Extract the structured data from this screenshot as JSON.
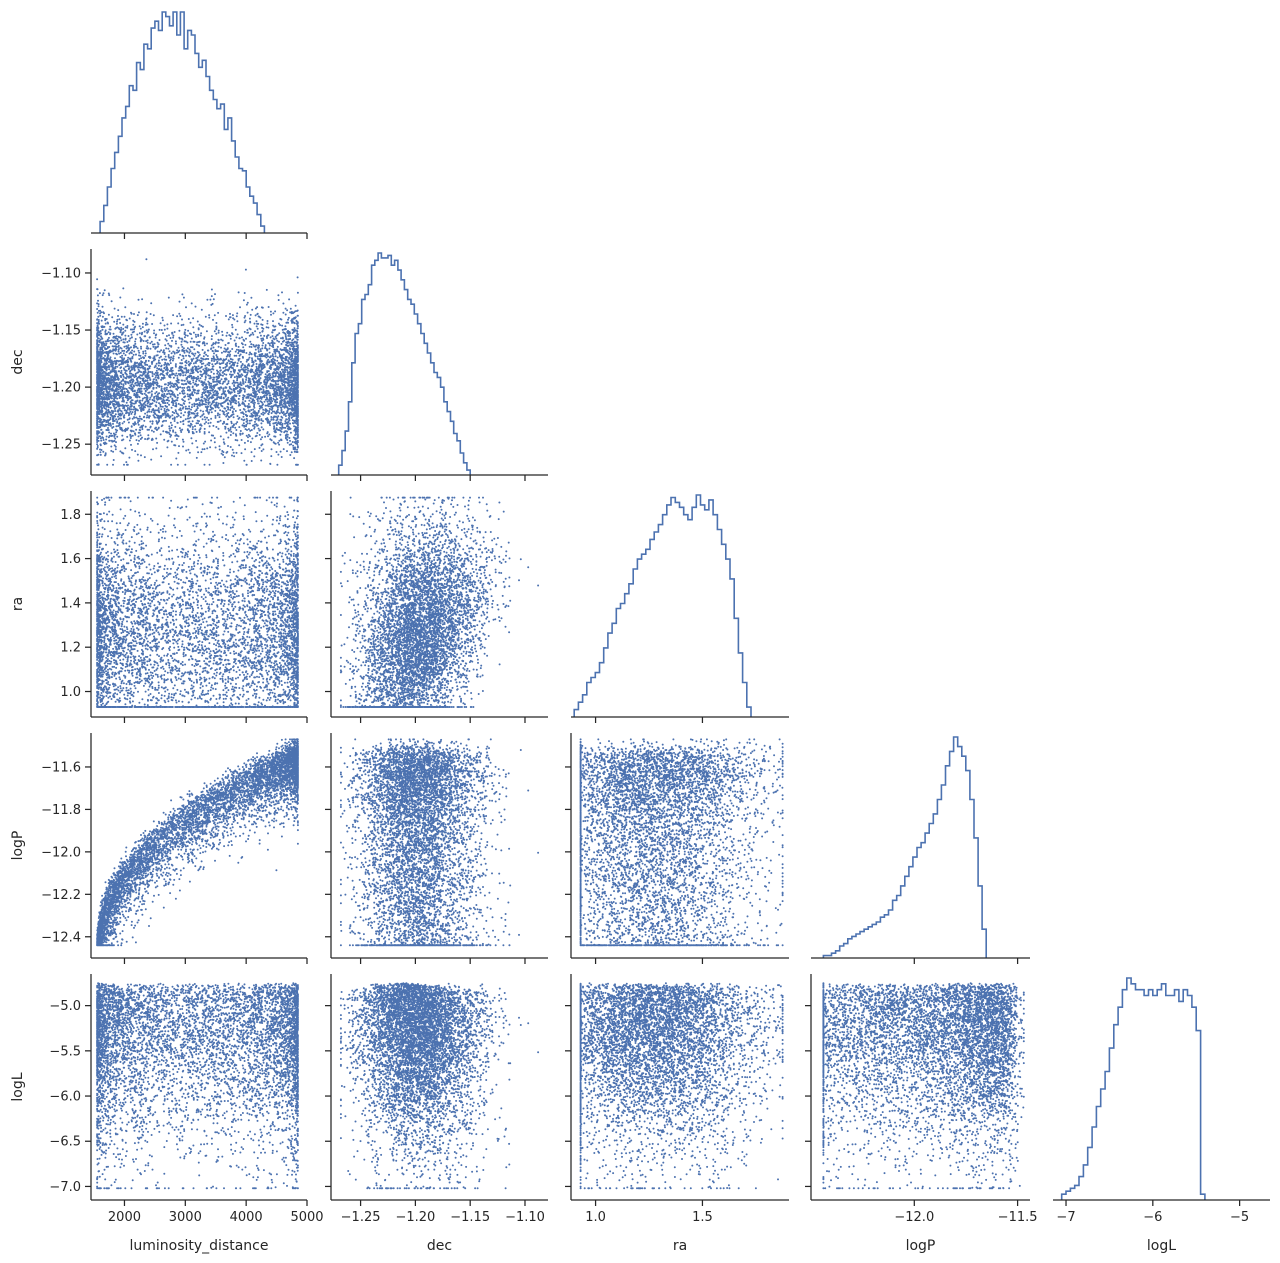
{
  "chart_data": {
    "type": "pairplot-corner",
    "variables": [
      "luminosity_distance",
      "dec",
      "ra",
      "logP",
      "logL"
    ],
    "axis_labels": {
      "x": [
        "luminosity_distance",
        "dec",
        "ra",
        "logP",
        "logL"
      ],
      "y": [
        "",
        "dec",
        "ra",
        "logP",
        "logL"
      ]
    },
    "ranges": {
      "luminosity_distance": [
        1450,
        5000
      ],
      "dec": [
        -1.277,
        -1.079
      ],
      "ra": [
        0.885,
        1.905
      ],
      "logP": [
        -12.5,
        -11.44
      ],
      "logL": [
        -7.15,
        -4.65
      ]
    },
    "ticks": {
      "luminosity_distance": [
        2000,
        3000,
        4000,
        5000
      ],
      "dec": [
        -1.25,
        -1.2,
        -1.15,
        -1.1
      ],
      "ra": [
        1.0,
        1.5
      ],
      "logP_x": [
        -12.0,
        -11.5
      ],
      "logP_y": [
        -12.4,
        -12.2,
        -12.0,
        -11.8,
        -11.6
      ],
      "logL_x": [
        -7,
        -6,
        -5
      ],
      "logL_y": [
        -7.0,
        -6.5,
        -6.0,
        -5.5,
        -5.0
      ],
      "ra_y": [
        1.0,
        1.2,
        1.4,
        1.6,
        1.8
      ],
      "dec_y": [
        -1.25,
        -1.2,
        -1.15,
        -1.1
      ]
    },
    "tick_labels": {
      "luminosity_distance": [
        "2000",
        "3000",
        "4000",
        "5000"
      ],
      "dec_x": [
        "−1.25",
        "−1.20",
        "−1.15",
        "−1.10"
      ],
      "ra_x": [
        "1.0",
        "1.5"
      ],
      "logP_x": [
        "−12.0",
        "−11.5"
      ],
      "logL_x": [
        "−7",
        "−6",
        "−5"
      ],
      "dec_y": [
        "−1.25",
        "−1.20",
        "−1.15",
        "−1.10"
      ],
      "ra_y": [
        "1.0",
        "1.2",
        "1.4",
        "1.6",
        "1.8"
      ],
      "logP_y": [
        "−12.4",
        "−12.2",
        "−12.0",
        "−11.8",
        "−11.6"
      ],
      "logL_y": [
        "−7.0",
        "−6.5",
        "−6.0",
        "−5.5",
        "−5.0"
      ]
    },
    "histograms": {
      "luminosity_distance": {
        "start": 1600,
        "width": 60,
        "counts": [
          5,
          12,
          20,
          28,
          35,
          42,
          50,
          55,
          64,
          62,
          74,
          71,
          82,
          80,
          89,
          92,
          88,
          96,
          94,
          90,
          96,
          86,
          96,
          80,
          88,
          86,
          78,
          72,
          75,
          68,
          62,
          58,
          54,
          56,
          45,
          50,
          40,
          33,
          28,
          27,
          20,
          16,
          13,
          8,
          3
        ]
      },
      "dec": {
        "start": -1.27,
        "width": 0.003,
        "counts": [
          4,
          10,
          18,
          30,
          46,
          58,
          62,
          72,
          74,
          78,
          86,
          88,
          91,
          89,
          89,
          90,
          86,
          88,
          84,
          80,
          76,
          72,
          70,
          66,
          62,
          58,
          54,
          50,
          46,
          42,
          40,
          36,
          30,
          26,
          22,
          17,
          14,
          9,
          5,
          2
        ]
      },
      "ra": {
        "start": 0.9,
        "width": 0.0197,
        "counts": [
          3,
          6,
          9,
          14,
          16,
          18,
          22,
          28,
          34,
          38,
          44,
          46,
          50,
          54,
          60,
          64,
          66,
          68,
          72,
          75,
          78,
          82,
          86,
          89,
          87,
          85,
          82,
          80,
          85,
          90,
          86,
          84,
          88,
          82,
          76,
          70,
          64,
          56,
          40,
          26,
          14,
          4
        ]
      },
      "logP": {
        "start": -12.44,
        "width": 0.0197,
        "counts": [
          1,
          1,
          2,
          3,
          5,
          6,
          8,
          9,
          10,
          11,
          12,
          13,
          14,
          15,
          17,
          18,
          20,
          24,
          26,
          30,
          34,
          38,
          42,
          46,
          48,
          52,
          56,
          60,
          66,
          72,
          80,
          86,
          92,
          88,
          84,
          78,
          66,
          50,
          30,
          12
        ]
      },
      "logL": {
        "start": -7.05,
        "width": 0.05,
        "counts": [
          2,
          3,
          4,
          5,
          8,
          12,
          18,
          25,
          32,
          38,
          44,
          52,
          60,
          66,
          72,
          76,
          74,
          72,
          72,
          70,
          72,
          70,
          72,
          74,
          70,
          70,
          72,
          68,
          72,
          70,
          66,
          58,
          2
        ]
      }
    },
    "scatter_points_per_panel": 6000,
    "color": "#4c72b0",
    "grid": false,
    "legend": "none"
  }
}
